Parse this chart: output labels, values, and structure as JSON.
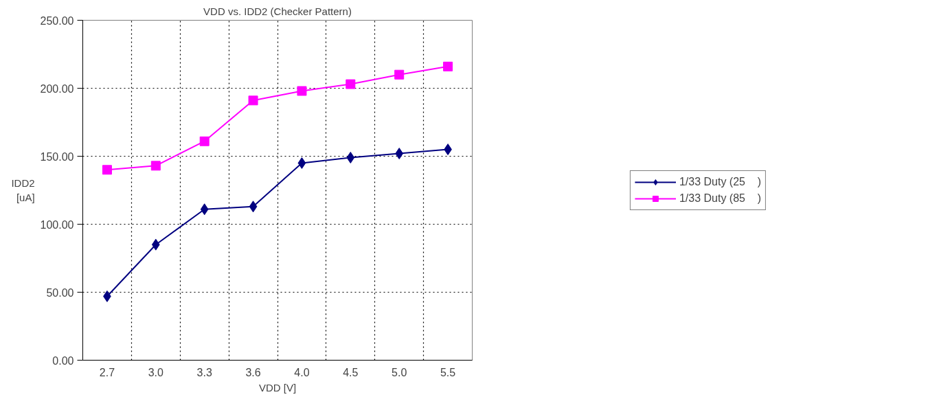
{
  "chart_data": {
    "type": "line",
    "title": "VDD vs. IDD2 (Checker Pattern)",
    "xlabel": "VDD [V]",
    "ylabel": "IDD2\n[uA]",
    "categories": [
      "2.7",
      "3.0",
      "3.3",
      "3.6",
      "4.0",
      "4.5",
      "5.0",
      "5.5"
    ],
    "series": [
      {
        "name": "1/33 Duty (25    )",
        "color": "#000080",
        "marker": "diamond",
        "values": [
          47,
          85,
          111,
          113,
          145,
          149,
          152,
          155
        ]
      },
      {
        "name": "1/33 Duty (85    )",
        "color": "#ff00ff",
        "marker": "square",
        "values": [
          140,
          143,
          161,
          191,
          198,
          203,
          210,
          216
        ]
      }
    ],
    "ylim": [
      0,
      250
    ],
    "yticks": [
      {
        "value": 0,
        "label": "0.00"
      },
      {
        "value": 50,
        "label": "50.00"
      },
      {
        "value": 100,
        "label": "100.00"
      },
      {
        "value": 150,
        "label": "150.00"
      },
      {
        "value": 200,
        "label": "200.00"
      },
      {
        "value": 250,
        "label": "250.00"
      }
    ],
    "grid": true,
    "legend": "right",
    "line_style": "solid"
  }
}
